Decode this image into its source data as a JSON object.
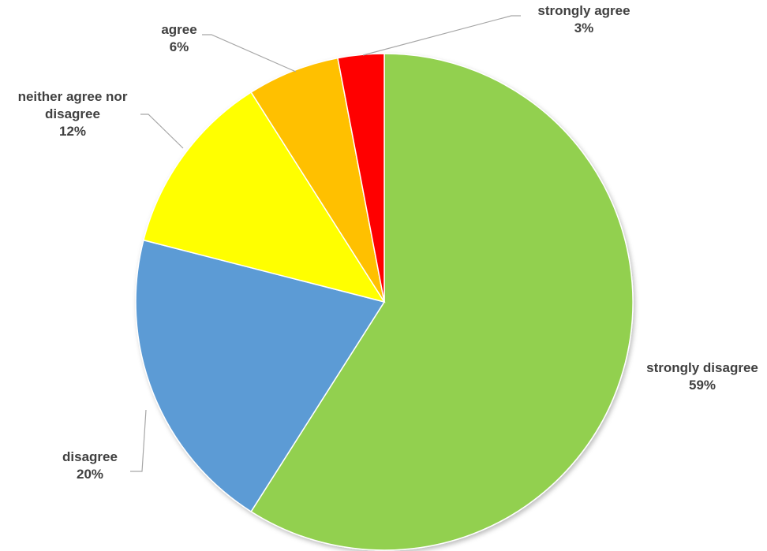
{
  "chart_data": {
    "type": "pie",
    "start_angle_deg": 0,
    "direction": "clockwise",
    "slices": [
      {
        "label": "strongly disagree",
        "value": 59,
        "display": "59%",
        "color": "#92d050"
      },
      {
        "label": "disagree",
        "value": 20,
        "display": "20%",
        "color": "#5b9bd5"
      },
      {
        "label": "neither agree nor disagree",
        "label_lines": [
          "neither agree nor",
          "disagree"
        ],
        "value": 12,
        "display": "12%",
        "color": "#ffff00"
      },
      {
        "label": "agree",
        "value": 6,
        "display": "6%",
        "color": "#ffc000"
      },
      {
        "label": "strongly agree",
        "value": 3,
        "display": "3%",
        "color": "#ff0000"
      }
    ],
    "legend": "none",
    "data_labels": "category name and percentage, outside with leader lines"
  }
}
